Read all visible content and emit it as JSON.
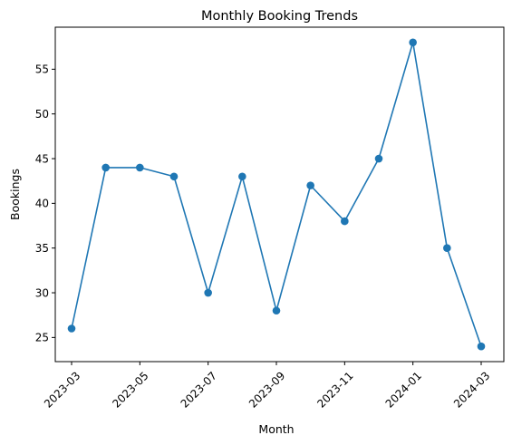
{
  "chart_data": {
    "type": "line",
    "title": "Monthly Booking Trends",
    "xlabel": "Month",
    "ylabel": "Bookings",
    "x": [
      "2023-03",
      "2023-04",
      "2023-05",
      "2023-06",
      "2023-07",
      "2023-08",
      "2023-09",
      "2023-10",
      "2023-11",
      "2023-12",
      "2024-01",
      "2024-02",
      "2024-03"
    ],
    "values": [
      26,
      44,
      44,
      43,
      30,
      43,
      28,
      42,
      38,
      45,
      58,
      35,
      24
    ],
    "xticks": [
      "2023-03",
      "2023-05",
      "2023-07",
      "2023-09",
      "2023-11",
      "2024-01",
      "2024-03"
    ],
    "yticks": [
      25,
      30,
      35,
      40,
      45,
      50,
      55
    ],
    "ylim": [
      22.3,
      59.7
    ],
    "grid": false,
    "marker": "circle",
    "color": "#1f77b4"
  }
}
